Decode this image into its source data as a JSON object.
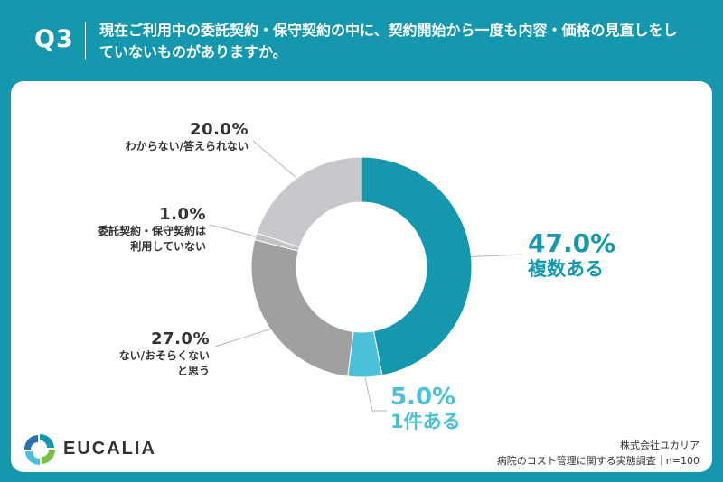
{
  "header": {
    "q_label": "Q3",
    "question": "現在ご利用中の委託契約・保守契約の中に、契約開始から一度も内容・価格の見直しをしていないものがありますか。"
  },
  "chart_data": {
    "type": "pie",
    "donut": true,
    "start": "12 o'clock",
    "direction": "clockwise",
    "labels": [
      "複数ある",
      "1件ある",
      "ない/おそらくないと思う",
      "委託契約・保守契約は利用していない",
      "わからない/答えられない"
    ],
    "values": [
      47.0,
      5.0,
      27.0,
      1.0,
      20.0
    ],
    "colors": [
      "#1598ad",
      "#4cc0d8",
      "#a0a0a0",
      "#c2c2c2",
      "#c8c8cc"
    ],
    "display": {
      "s0": {
        "pct": "47.0%",
        "cat": "複数ある"
      },
      "s1": {
        "pct": "5.0%",
        "cat": "1件ある"
      },
      "s2": {
        "pct": "27.0%",
        "cat1": "ない/おそらくない",
        "cat2": "と思う"
      },
      "s3": {
        "pct": "1.0%",
        "cat1": "委託契約・保守契約は",
        "cat2": "利用していない"
      },
      "s4": {
        "pct": "20.0%",
        "cat": "わからない/答えられない"
      }
    }
  },
  "footer": {
    "brand": "EUCALIA",
    "company": "株式会社ユカリア",
    "survey": "病院のコスト管理に関する実態調査｜n=100"
  },
  "icons": {
    "logo": "eucalia-logo-icon"
  }
}
